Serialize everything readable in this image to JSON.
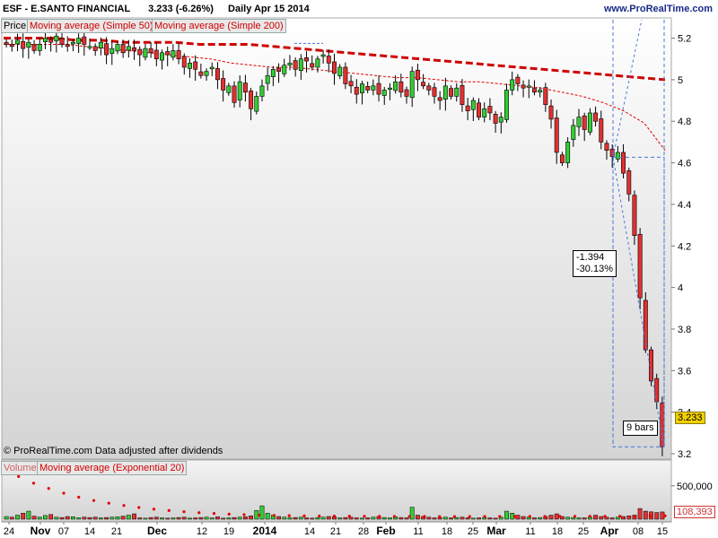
{
  "header": {
    "title": "ESF - E.SANTO FINANCIAL",
    "last": "3.233 (-6.26%)",
    "period": "Daily",
    "date": "Apr 15 2014",
    "site": "www.ProRealTime.com"
  },
  "panels": {
    "price_tab": "Price",
    "ma50_tab": "Moving average (Simple 50)",
    "ma200_tab": "Moving average (Simple 200)",
    "volume_tab": "Volume",
    "vol_ma_tab": "Moving average (Exponential 20)",
    "footnote": "© ProRealTime.com  Data adjusted after dividends"
  },
  "annotations": {
    "change_abs": "-1.394",
    "change_pct": "-30.13%",
    "bars": "9 bars",
    "price_tag": "3.233",
    "volume_tag": "108,393"
  },
  "colors": {
    "up": "#33cc33",
    "down": "#e23030",
    "ma50": "#e00000",
    "ma200": "#d00000",
    "panel_bg_top": "#ffffff",
    "panel_bg_bottom": "#d4d4d4",
    "tag_bg": "#f2d000",
    "guide": "#4a78d8"
  },
  "chart_data": [
    {
      "type": "candlestick",
      "title": "ESF - E.SANTO FINANCIAL",
      "ylim": [
        3.2,
        5.28
      ],
      "y_ticks": [
        "3.2",
        "3.4",
        "3.6",
        "3.8",
        "4",
        "4.2",
        "4.4",
        "4.6",
        "4.8",
        "5",
        "5.2"
      ],
      "x_tick_labels": [
        "24",
        "Nov",
        "07",
        "14",
        "21",
        "Dec",
        "12",
        "19",
        "2014",
        "14",
        "21",
        "28",
        "Feb",
        "11",
        "18",
        "25",
        "Mar",
        "11",
        "18",
        "25",
        "Apr",
        "08",
        "15"
      ],
      "series": [
        {
          "name": "Price",
          "values": [
            5.17,
            5.16,
            5.19,
            5.15,
            5.18,
            5.14,
            5.17,
            5.2,
            5.18,
            5.21,
            5.17,
            5.16,
            5.18,
            5.2,
            5.17,
            5.16,
            5.14,
            5.18,
            5.12,
            5.15,
            5.17,
            5.13,
            5.16,
            5.14,
            5.12,
            5.15,
            5.13,
            5.1,
            5.13,
            5.12,
            5.14,
            5.1,
            5.06,
            5.08,
            5.05,
            5.02,
            5.04,
            5.06,
            5.0,
            4.95,
            4.97,
            4.89,
            4.99,
            4.94,
            4.86,
            4.92,
            4.97,
            5.02,
            5.05,
            5.04,
            5.07,
            5.08,
            5.05,
            5.1,
            5.09,
            5.06,
            5.1,
            5.12,
            5.08,
            5.03,
            5.06,
            4.98,
            4.97,
            4.93,
            4.98,
            4.95,
            4.97,
            4.93,
            4.95,
            4.96,
            4.99,
            4.94,
            4.92,
            5.04,
            5.0,
            4.97,
            4.95,
            4.92,
            4.9,
            4.97,
            4.92,
            4.96,
            4.88,
            4.85,
            4.9,
            4.82,
            4.86,
            4.84,
            4.79,
            4.82,
            4.95,
            5.0,
            4.98,
            4.96,
            4.97,
            4.94,
            4.95,
            4.88,
            4.81,
            4.65,
            4.6,
            4.7,
            4.78,
            4.82,
            4.76,
            4.84,
            4.8,
            4.7,
            4.66,
            4.63,
            4.65,
            4.55,
            4.45,
            4.25,
            3.95,
            3.7,
            3.55,
            3.45,
            3.233
          ]
        },
        {
          "name": "Moving average (Simple 50)",
          "values": [
            5.17,
            5.17,
            5.17,
            5.17,
            5.16,
            5.15,
            5.14,
            5.13,
            5.12,
            5.11,
            5.1,
            5.08,
            5.07,
            5.06,
            5.06,
            5.05,
            5.04,
            5.03,
            5.02,
            5.01,
            5.01,
            5.0,
            4.99,
            4.99,
            4.98,
            4.97,
            4.96,
            4.94,
            4.92,
            4.89,
            4.85,
            4.79,
            4.66
          ]
        },
        {
          "name": "Moving average (Simple 200)",
          "values": [
            5.2,
            5.2,
            5.2,
            5.19,
            5.19,
            5.18,
            5.18,
            5.18,
            5.17,
            5.17,
            5.17,
            5.16,
            5.15,
            5.14,
            5.13,
            5.12,
            5.11,
            5.1,
            5.09,
            5.08,
            5.07,
            5.06,
            5.05,
            5.04,
            5.03,
            5.02,
            5.01,
            5.0
          ]
        }
      ],
      "measure": {
        "change": "-1.394",
        "change_pct": "-30.13%",
        "bars": "9 bars",
        "last": "3.233"
      }
    },
    {
      "type": "bar",
      "title": "Volume",
      "y_ticks": [
        "500,000"
      ],
      "series": [
        {
          "name": "Volume",
          "values": [
            40000,
            30000,
            60000,
            90000,
            120000,
            45000,
            30000,
            55000,
            70000,
            30000,
            25000,
            40000,
            35000,
            20000,
            30000,
            25000,
            30000,
            20000,
            25000,
            30000,
            35000,
            45000,
            60000,
            80000,
            20000,
            15000,
            25000,
            30000,
            20000,
            15000,
            20000,
            25000,
            30000,
            15000,
            20000,
            25000,
            30000,
            20000,
            35000,
            15000,
            20000,
            25000,
            30000,
            35000,
            50000,
            130000,
            200000,
            90000,
            60000,
            40000,
            30000,
            20000,
            25000,
            30000,
            20000,
            15000,
            25000,
            30000,
            40000,
            35000,
            20000,
            25000,
            30000,
            20000,
            15000,
            20000,
            30000,
            40000,
            25000,
            20000,
            35000,
            25000,
            20000,
            180000,
            60000,
            40000,
            30000,
            20000,
            25000,
            30000,
            20000,
            25000,
            30000,
            20000,
            15000,
            20000,
            25000,
            20000,
            15000,
            30000,
            120000,
            90000,
            60000,
            40000,
            30000,
            20000,
            25000,
            40000,
            60000,
            80000,
            40000,
            30000,
            25000,
            20000,
            20000,
            30000,
            60000,
            40000,
            30000,
            20000,
            30000,
            40000,
            50000,
            60000,
            160000,
            120000,
            110000,
            100000,
            108393
          ]
        },
        {
          "name": "Moving average (Exponential 20)",
          "values": [
            760000,
            640000,
            540000,
            460000,
            390000,
            330000,
            280000,
            240000,
            205000,
            175000,
            150000,
            130000,
            112000,
            98000,
            86000,
            76000,
            68000,
            61000,
            56000,
            52000,
            49000,
            47000,
            45000,
            44000,
            43000,
            42000,
            41000,
            40000,
            40000,
            39000,
            39000,
            39000,
            40000,
            40000,
            40000,
            41000,
            41000,
            42000,
            42000,
            43000,
            43000,
            44000,
            46000,
            48000,
            50000
          ]
        }
      ],
      "last": "108,393"
    }
  ]
}
